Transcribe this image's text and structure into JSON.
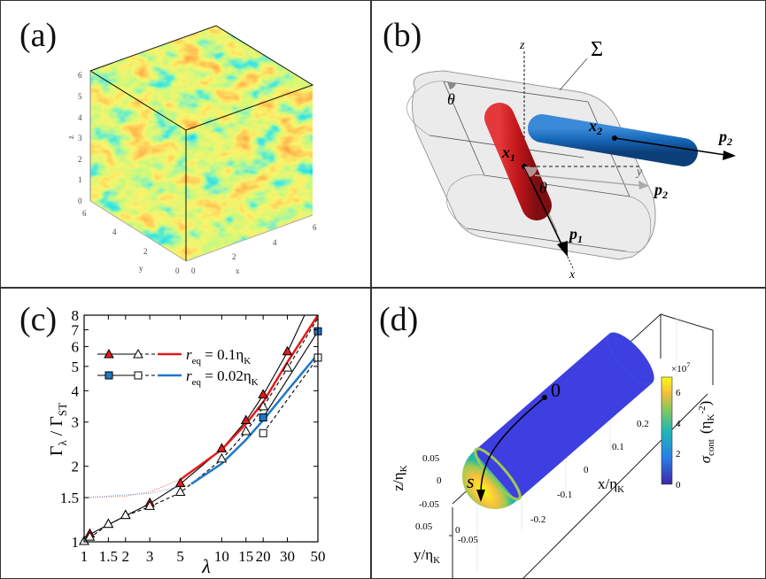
{
  "panels": {
    "a": {
      "label": "(a)",
      "z_ticks": [
        "0",
        "1",
        "2",
        "3",
        "4",
        "5",
        "6"
      ],
      "y_ticks": [
        "0",
        "2",
        "4",
        "6"
      ],
      "x_ticks": [
        "0",
        "2",
        "4",
        "6"
      ],
      "x_label": "x",
      "y_label": "y",
      "z_label": "z"
    },
    "b": {
      "label": "(b)",
      "sigma": "Σ",
      "theta": "θ",
      "z_axis": "z",
      "y_axis": "y",
      "x_axis": "x",
      "x1": "x",
      "x1_sub": "1",
      "x2": "x",
      "x2_sub": "2",
      "p1": "p",
      "p1_sub": "1",
      "p2": "p",
      "p2_sub": "2",
      "colors": {
        "rod1": "#c0151a",
        "rod2": "#1565b5"
      }
    },
    "c": {
      "label": "(c)"
    },
    "d": {
      "label": "(d)",
      "origin_label": "0",
      "arc_label": "s",
      "x_label": "x/η",
      "x_label_sub": "K",
      "y_label": "y/η",
      "y_label_sub": "K",
      "z_label": "z/η",
      "z_label_sub": "K",
      "x_ticks": [
        "-0.2",
        "-0.1",
        "0",
        "0.1",
        "0.2"
      ],
      "y_ticks": [
        "0.05",
        "0",
        "-0.05"
      ],
      "z_ticks": [
        "0.05",
        "0",
        "-0.05"
      ],
      "colorbar": {
        "multiplier": "×10",
        "multiplier_exp": "7",
        "ticks": [
          "0",
          "2",
          "4",
          "6"
        ],
        "label": "σ",
        "label_sub": "cont",
        "unit": "(η",
        "unit_sub": "K",
        "unit_sup": "-2",
        "unit_close": ")",
        "range": [
          0,
          7
        ]
      }
    }
  },
  "chart_data": {
    "type": "line",
    "xlabel": "λ",
    "ylabel": "Γ",
    "ylabel_sub1": "λ",
    "ylabel_mid": " / Γ",
    "ylabel_sub2": "ST",
    "x_scale": "log",
    "y_scale": "log",
    "xlim": [
      1,
      50
    ],
    "ylim": [
      1,
      8
    ],
    "x_ticks": [
      "1",
      "1.5",
      "2",
      "3",
      "5",
      "10",
      "15",
      "20",
      "30",
      "50"
    ],
    "y_ticks": [
      "1",
      "1.5",
      "2",
      "3",
      "4",
      "5",
      "6",
      "7",
      "8"
    ],
    "grid": false,
    "legend_placement": "top-left",
    "legend": [
      {
        "prefix": "r",
        "sub": "eq",
        "mid": " = 0.1η",
        "sub2": "K",
        "color": "#e21b1b"
      },
      {
        "prefix": "r",
        "sub": "eq",
        "mid": " = 0.02η",
        "sub2": "K",
        "color": "#1f78c8"
      }
    ],
    "series": [
      {
        "marker": "filled-triangle",
        "line": "solid",
        "color": "#e21b1b",
        "x": [
          1,
          1.1,
          1.5,
          2,
          3,
          5,
          10,
          15,
          20,
          30
        ],
        "y": [
          1.0,
          1.07,
          1.17,
          1.27,
          1.42,
          1.7,
          2.34,
          3.03,
          3.84,
          5.7
        ]
      },
      {
        "marker": "open-triangle",
        "line": "dashed",
        "color": "#000000",
        "x": [
          1,
          1.1,
          1.5,
          2,
          3,
          5,
          10,
          15,
          20,
          30
        ],
        "y": [
          1.0,
          1.04,
          1.17,
          1.27,
          1.38,
          1.57,
          2.13,
          2.74,
          3.44,
          4.91
        ]
      },
      {
        "marker": "filled-square",
        "line": "solid",
        "color": "#1f78c8",
        "x": [
          20,
          50
        ],
        "y": [
          3.13,
          6.9
        ]
      },
      {
        "marker": "open-square",
        "line": "dashed",
        "color": "#000000",
        "x": [
          20,
          50
        ],
        "y": [
          2.71,
          5.42
        ]
      },
      {
        "marker": "none",
        "line": "model",
        "color": "#e21b1b",
        "x": [
          5,
          10,
          15,
          20,
          30,
          50
        ],
        "y": [
          1.77,
          2.33,
          2.95,
          3.6,
          5.2,
          8.0
        ]
      },
      {
        "marker": "none",
        "line": "model",
        "color": "#1f78c8",
        "x": [
          6,
          10,
          15,
          20,
          30,
          50
        ],
        "y": [
          1.7,
          2.05,
          2.55,
          3.05,
          4.0,
          5.6
        ]
      },
      {
        "marker": "none",
        "line": "dotted",
        "color": "#e21b1b",
        "x": [
          1,
          2,
          3,
          5
        ],
        "y": [
          1.5,
          1.52,
          1.58,
          1.77
        ]
      },
      {
        "marker": "none",
        "line": "dotted",
        "color": "#1f78c8",
        "x": [
          1,
          3,
          6
        ],
        "y": [
          1.5,
          1.56,
          1.7
        ]
      }
    ],
    "line_extensions": {
      "series_1_to": [
        40,
        8.0
      ],
      "series_2_to": [
        50,
        7.8
      ],
      "series_3_from": [
        20,
        3.13
      ],
      "series_4_from": [
        20,
        2.71
      ]
    }
  }
}
